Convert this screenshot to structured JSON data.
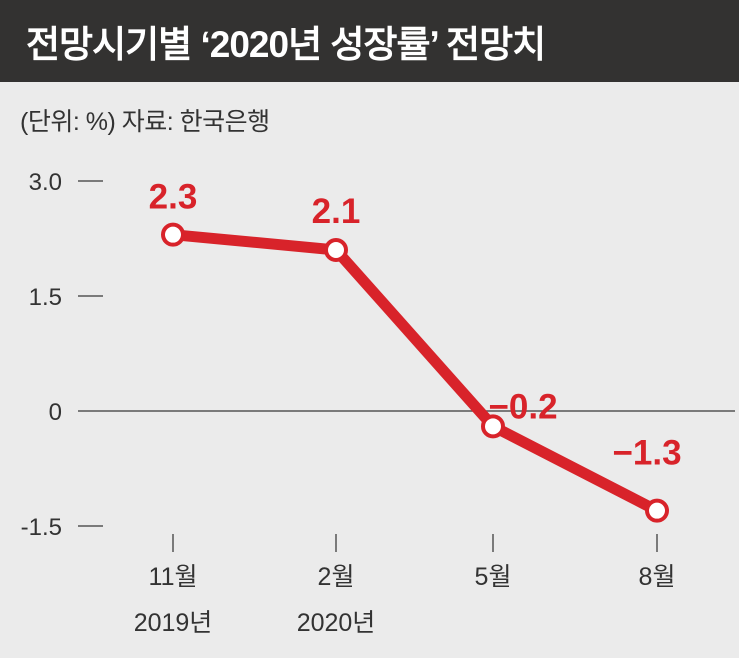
{
  "title": "전망시기별 ‘2020년 성장률’ 전망치",
  "unit_note": "(단위: %) 자료: 한국은행",
  "colors": {
    "line": "#d8232a",
    "axis": "#555555",
    "title_bg": "#333231"
  },
  "chart_data": {
    "type": "line",
    "title": "전망시기별 ‘2020년 성장률’ 전망치",
    "categories": [
      {
        "line1": "11월",
        "line2": "2019년"
      },
      {
        "line1": "2월",
        "line2": "2020년"
      },
      {
        "line1": "5월",
        "line2": ""
      },
      {
        "line1": "8월",
        "line2": ""
      }
    ],
    "series": [
      {
        "values": [
          2.3,
          2.1,
          -0.2,
          -1.3
        ],
        "labels": [
          "2.3",
          "2.1",
          "−0.2",
          "−1.3"
        ]
      }
    ],
    "yticks": [
      {
        "value": 3.0,
        "label": "3.0"
      },
      {
        "value": 1.5,
        "label": "1.5"
      },
      {
        "value": 0,
        "label": "0"
      },
      {
        "value": -1.5,
        "label": "-1.5"
      }
    ],
    "ylim": [
      -1.5,
      3.0
    ],
    "grid": false,
    "zero_line": true
  }
}
